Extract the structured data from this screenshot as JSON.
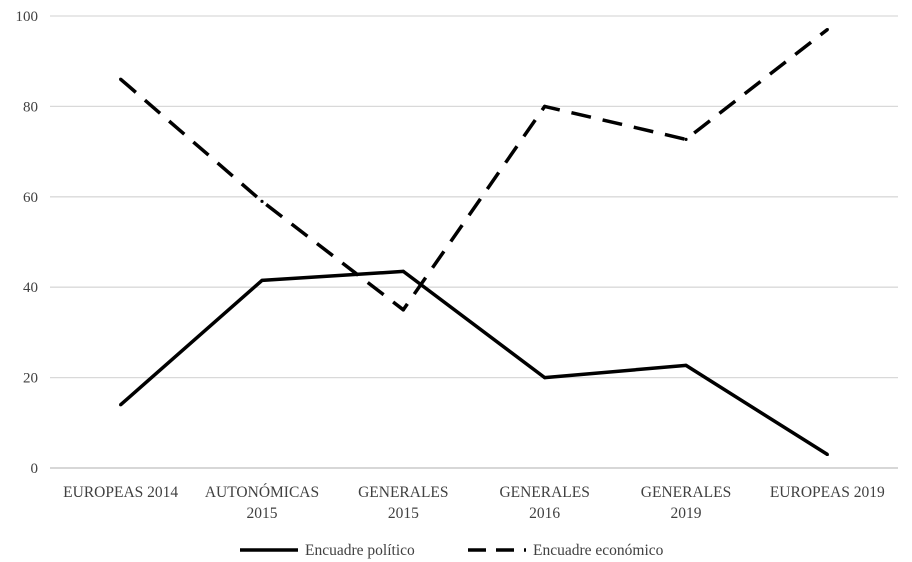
{
  "chart_data": {
    "type": "line",
    "categories": [
      [
        "EUROPEAS 2014"
      ],
      [
        "AUTONÓMICAS",
        "2015"
      ],
      [
        "GENERALES",
        "2015"
      ],
      [
        "GENERALES",
        "2016"
      ],
      [
        "GENERALES",
        "2019"
      ],
      [
        "EUROPEAS 2019"
      ]
    ],
    "series": [
      {
        "name": "Encuadre político",
        "style": "solid",
        "color": "#000000",
        "values": [
          14,
          41.5,
          43.5,
          20,
          22.7,
          3
        ]
      },
      {
        "name": "Encuadre económico",
        "style": "dashed",
        "color": "#000000",
        "values": [
          86,
          59,
          35,
          80,
          72.7,
          97
        ]
      }
    ],
    "ylim": [
      0,
      100
    ],
    "yticks": [
      0,
      20,
      40,
      60,
      80,
      100
    ],
    "grid": true,
    "legend_position": "bottom",
    "title": "",
    "xlabel": "",
    "ylabel": ""
  }
}
